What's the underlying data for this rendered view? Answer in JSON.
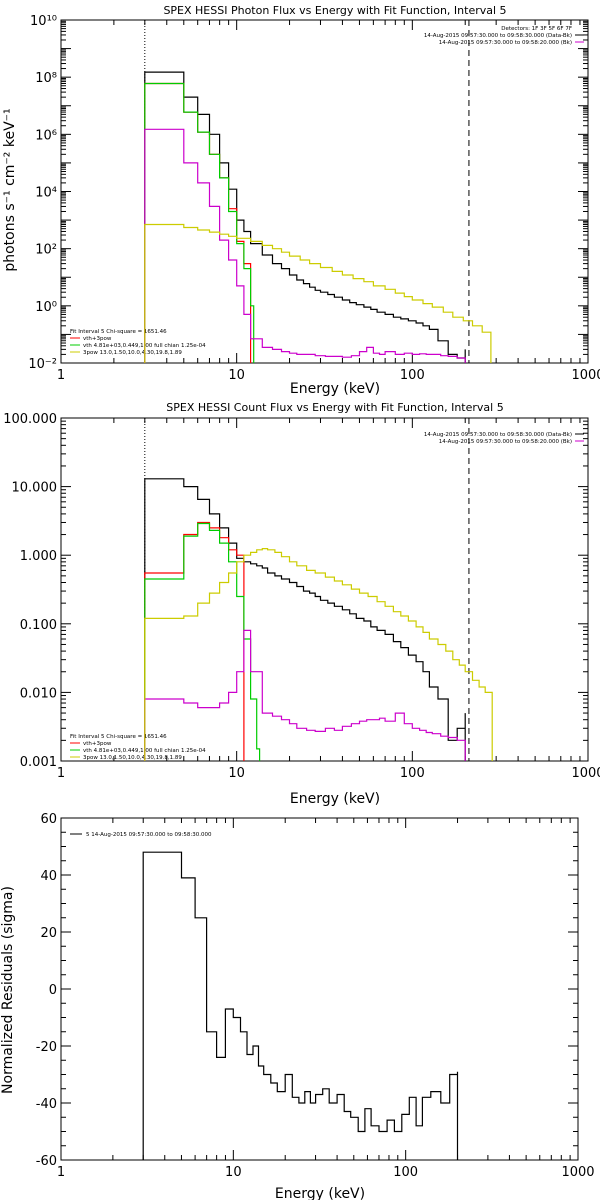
{
  "chart_data": [
    {
      "type": "line",
      "title": "SPEX HESSI Photon Flux vs Energy with Fit Function, Interval 5",
      "xlabel": "Energy (keV)",
      "ylabel": "photons s⁻¹ cm⁻² keV⁻¹",
      "xscale": "log",
      "yscale": "log",
      "xlim": [
        1,
        1000
      ],
      "ylim": [
        0.01,
        10000000000
      ],
      "xtick_labels": [
        "1",
        "10",
        "100",
        "1000"
      ],
      "ytick_labels": [
        "10⁻²",
        "10⁰",
        "10²",
        "10⁴",
        "10⁶",
        "10⁸",
        "10¹⁰"
      ],
      "vlines": [
        {
          "x": 3.0,
          "style": "dotted"
        },
        {
          "x": 210,
          "style": "dashed"
        }
      ],
      "legend_topright": [
        "Detectors: 1F 3F 5F 6F 7F",
        "14-Aug-2015 09:57:30.000 to 09:58:30.000 (Data-Bk)",
        "14-Aug-2015 09:57:30.000 to 09:58:20.000 (Bk)"
      ],
      "legend_bottomleft": [
        "Fit Interval 5   Chi-square = 1651.46",
        "vth+3pow",
        "vth 4.81e+03,0.449,1.00  full chian 1.25e-04",
        "3pow 13.0,1.50,10.0,4.30,19.8,1.89"
      ],
      "series": [
        {
          "color": "#000000",
          "step": true,
          "x": [
            3.0,
            4.0,
            5.0,
            6.0,
            7.0,
            8.0,
            9.0,
            10.0,
            11.0,
            12.0,
            14.0,
            16.0,
            18.0,
            20.0,
            22.0,
            24.0,
            26.0,
            28.0,
            30.0,
            33.0,
            36.0,
            40.0,
            44.0,
            48.0,
            53.0,
            58.0,
            63.0,
            70.0,
            78.0,
            86.0,
            95.0,
            105.0,
            115.0,
            125.0,
            140.0,
            160.0,
            180.0,
            200.0
          ],
          "y": [
            150000000,
            150000000,
            20000000,
            5000000,
            1000000,
            100000,
            12000,
            1000,
            400,
            150,
            60,
            30,
            20,
            12,
            8,
            6,
            4.5,
            3.5,
            3,
            2.5,
            2,
            1.6,
            1.3,
            1.1,
            0.9,
            0.75,
            0.6,
            0.5,
            0.4,
            0.35,
            0.3,
            0.25,
            0.2,
            0.15,
            0.06,
            0.02,
            0.015,
            0.03
          ]
        },
        {
          "color": "#ff0000",
          "step": true,
          "x": [
            3.0,
            4.0,
            5.0,
            6.0,
            7.0,
            8.0,
            9.0,
            10.0,
            11.0,
            12.0
          ],
          "y": [
            60000000,
            60000000,
            6000000,
            1200000,
            200000,
            30000,
            2500,
            180,
            30,
            1
          ]
        },
        {
          "color": "#00cc00",
          "step": true,
          "x": [
            3.0,
            4.0,
            5.0,
            6.0,
            7.0,
            8.0,
            9.0,
            10.0,
            11.0,
            12.0,
            12.5
          ],
          "y": [
            60000000,
            60000000,
            6000000,
            1200000,
            200000,
            30000,
            2000,
            150,
            20,
            1,
            0.01
          ]
        },
        {
          "color": "#cc00cc",
          "step": true,
          "x": [
            3.0,
            4.0,
            5.0,
            6.0,
            7.0,
            8.0,
            9.0,
            10.0,
            11.0,
            12.0,
            14.0,
            16.0,
            18.0,
            20.0,
            22.0,
            25.0,
            28.0,
            32.0,
            36.0,
            40.0,
            45.0,
            50.0,
            55.0,
            60.0,
            65.0,
            70.0,
            80.0,
            90.0,
            100.0,
            110.0,
            120.0,
            130.0,
            145.0,
            160.0,
            180.0,
            200.0
          ],
          "y": [
            1500000,
            1500000,
            100000,
            20000,
            3000,
            200,
            40,
            5,
            0.5,
            0.07,
            0.035,
            0.03,
            0.025,
            0.022,
            0.02,
            0.02,
            0.018,
            0.017,
            0.017,
            0.016,
            0.018,
            0.025,
            0.035,
            0.022,
            0.02,
            0.025,
            0.02,
            0.022,
            0.02,
            0.021,
            0.02,
            0.02,
            0.018,
            0.017,
            0.015,
            0.015
          ]
        },
        {
          "color": "#cccc00",
          "step": true,
          "x": [
            3.0,
            4.0,
            5.0,
            6.0,
            7.0,
            8.0,
            9.0,
            10.0,
            12.0,
            14.0,
            16.0,
            18.0,
            20.0,
            23.0,
            26.0,
            30.0,
            35.0,
            40.0,
            46.0,
            53.0,
            60.0,
            70.0,
            80.0,
            90.0,
            100.0,
            115.0,
            130.0,
            150.0,
            170.0,
            195.0,
            220.0,
            250.0,
            280.0
          ],
          "y": [
            700,
            700,
            550,
            450,
            380,
            320,
            270,
            230,
            180,
            130,
            100,
            75,
            55,
            40,
            30,
            22,
            16,
            12,
            9,
            7,
            5,
            3.8,
            2.8,
            2.1,
            1.6,
            1.2,
            0.9,
            0.6,
            0.4,
            0.3,
            0.2,
            0.12,
            0.01
          ]
        }
      ]
    },
    {
      "type": "line",
      "title": "SPEX HESSI Count Flux vs Energy with Fit Function, Interval 5",
      "xlabel": "Energy (keV)",
      "ylabel": "",
      "xscale": "log",
      "yscale": "log",
      "xlim": [
        1,
        1000
      ],
      "ylim": [
        0.001,
        100
      ],
      "xtick_labels": [
        "1",
        "10",
        "100",
        "1000"
      ],
      "ytick_labels": [
        "0.001",
        "0.010",
        "0.100",
        "1.000",
        "10.000",
        "100.000"
      ],
      "vlines": [
        {
          "x": 3.0,
          "style": "dotted"
        },
        {
          "x": 210,
          "style": "dashed"
        }
      ],
      "legend_topright": [
        "14-Aug-2015 09:57:30.000 to 09:58:30.000 (Data-Bk)",
        "14-Aug-2015 09:57:30.000 to 09:58:20.000 (Bk)"
      ],
      "legend_bottomleft": [
        "Fit Interval 5   Chi-square = 1651.46",
        "vth+3pow",
        "vth 4.81e+03,0.449,1.00  full chian 1.25e-04",
        "3pow 13.0,1.50,10.0,4.30,19.8,1.89"
      ],
      "series": [
        {
          "color": "#000000",
          "step": true,
          "x": [
            3.0,
            4.0,
            5.0,
            6.0,
            7.0,
            8.0,
            9.0,
            10.0,
            11.0,
            12.0,
            13.0,
            14.0,
            15.0,
            16.5,
            18.0,
            20.0,
            22.0,
            24.0,
            26.0,
            28.0,
            30.0,
            33.0,
            36.0,
            40.0,
            44.0,
            48.0,
            53.0,
            58.0,
            63.0,
            70.0,
            78.0,
            86.0,
            95.0,
            105.0,
            115.0,
            125.0,
            140.0,
            160.0,
            180.0,
            200.0
          ],
          "y": [
            13,
            13,
            10,
            6.5,
            4.0,
            2.5,
            1.5,
            0.9,
            0.8,
            0.75,
            0.7,
            0.65,
            0.55,
            0.5,
            0.45,
            0.4,
            0.35,
            0.3,
            0.28,
            0.25,
            0.22,
            0.2,
            0.18,
            0.16,
            0.14,
            0.12,
            0.11,
            0.09,
            0.08,
            0.07,
            0.055,
            0.045,
            0.035,
            0.028,
            0.02,
            0.012,
            0.008,
            0.002,
            0.003,
            0.005
          ]
        },
        {
          "color": "#ff0000",
          "step": true,
          "x": [
            3.0,
            4.0,
            5.0,
            6.0,
            7.0,
            8.0,
            9.0,
            10.0,
            11.0
          ],
          "y": [
            0.55,
            0.55,
            2.0,
            3.0,
            2.5,
            1.8,
            1.2,
            1.0,
            1.0
          ]
        },
        {
          "color": "#00cc00",
          "step": true,
          "x": [
            3.0,
            4.0,
            5.0,
            6.0,
            7.0,
            8.0,
            9.0,
            10.0,
            11.0,
            12.0,
            13.0,
            13.5
          ],
          "y": [
            0.45,
            0.45,
            1.9,
            2.9,
            2.3,
            1.5,
            0.8,
            0.25,
            0.06,
            0.008,
            0.0015,
            0.001
          ]
        },
        {
          "color": "#cc00cc",
          "step": true,
          "x": [
            3.0,
            4.0,
            5.0,
            6.0,
            7.0,
            8.0,
            9.0,
            10.0,
            11.0,
            12.0,
            14.0,
            16.0,
            18.0,
            20.0,
            22.0,
            25.0,
            28.0,
            32.0,
            36.0,
            40.0,
            45.0,
            50.0,
            55.0,
            60.0,
            65.0,
            70.0,
            80.0,
            90.0,
            100.0,
            110.0,
            120.0,
            130.0,
            145.0,
            160.0,
            180.0,
            200.0
          ],
          "y": [
            0.008,
            0.008,
            0.007,
            0.006,
            0.006,
            0.007,
            0.01,
            0.02,
            0.08,
            0.02,
            0.005,
            0.0045,
            0.004,
            0.0035,
            0.003,
            0.0028,
            0.0027,
            0.003,
            0.0028,
            0.0032,
            0.0035,
            0.0038,
            0.004,
            0.004,
            0.0042,
            0.0038,
            0.005,
            0.0035,
            0.003,
            0.0028,
            0.0026,
            0.0025,
            0.0023,
            0.0022,
            0.002,
            0.002
          ]
        },
        {
          "color": "#cccc00",
          "step": true,
          "x": [
            3.0,
            4.0,
            5.0,
            6.0,
            7.0,
            8.0,
            9.0,
            10.0,
            11.0,
            12.0,
            13.0,
            14.0,
            15.0,
            16.5,
            18.0,
            20.0,
            22.0,
            25.0,
            28.0,
            32.0,
            36.0,
            40.0,
            45.0,
            50.0,
            56.0,
            63.0,
            70.0,
            78.0,
            86.0,
            95.0,
            105.0,
            115.0,
            125.0,
            140.0,
            155.0,
            170.0,
            185.0,
            200.0,
            220.0,
            240.0,
            260.0,
            285.0
          ],
          "y": [
            0.12,
            0.12,
            0.13,
            0.2,
            0.28,
            0.4,
            0.55,
            0.8,
            1.0,
            1.1,
            1.2,
            1.25,
            1.2,
            1.1,
            0.95,
            0.8,
            0.7,
            0.6,
            0.55,
            0.48,
            0.42,
            0.37,
            0.32,
            0.28,
            0.25,
            0.21,
            0.18,
            0.15,
            0.13,
            0.11,
            0.09,
            0.075,
            0.06,
            0.05,
            0.04,
            0.03,
            0.025,
            0.02,
            0.015,
            0.012,
            0.01,
            0.001
          ]
        }
      ]
    },
    {
      "type": "line",
      "title": "",
      "xlabel": "Energy (keV)",
      "ylabel": "Normalized Residuals (sigma)",
      "xscale": "log",
      "yscale": "linear",
      "xlim": [
        1,
        1000
      ],
      "ylim": [
        -60,
        60
      ],
      "xtick_labels": [
        "1",
        "10",
        "100",
        "1000"
      ],
      "ytick_labels": [
        "-60",
        "-40",
        "-20",
        "0",
        "20",
        "40",
        "60"
      ],
      "legend_topleft": [
        "5  14-Aug-2015 09:57:30.000 to 09:58:30.000"
      ],
      "series": [
        {
          "color": "#000000",
          "step": true,
          "x": [
            3.0,
            4.0,
            5.0,
            6.0,
            7.0,
            8.0,
            9.0,
            10.0,
            11.0,
            12.0,
            13.0,
            14.0,
            15.0,
            16.5,
            18.0,
            20.0,
            22.0,
            24.0,
            26.0,
            28.0,
            30.0,
            33.0,
            36.0,
            40.0,
            44.0,
            48.0,
            53.0,
            58.0,
            63.0,
            70.0,
            78.0,
            86.0,
            95.0,
            105.0,
            115.0,
            125.0,
            140.0,
            160.0,
            180.0,
            200.0
          ],
          "y": [
            48,
            48,
            39,
            25,
            -15,
            -24,
            -7,
            -10,
            -15,
            -23,
            -20,
            -27,
            -30,
            -33,
            -36,
            -30,
            -38,
            -40,
            -36,
            -40,
            -37,
            -35,
            -40,
            -37,
            -43,
            -45,
            -50,
            -42,
            -48,
            -50,
            -46,
            -50,
            -44,
            -38,
            -48,
            -38,
            -36,
            -40,
            -30,
            -29
          ]
        }
      ]
    }
  ]
}
